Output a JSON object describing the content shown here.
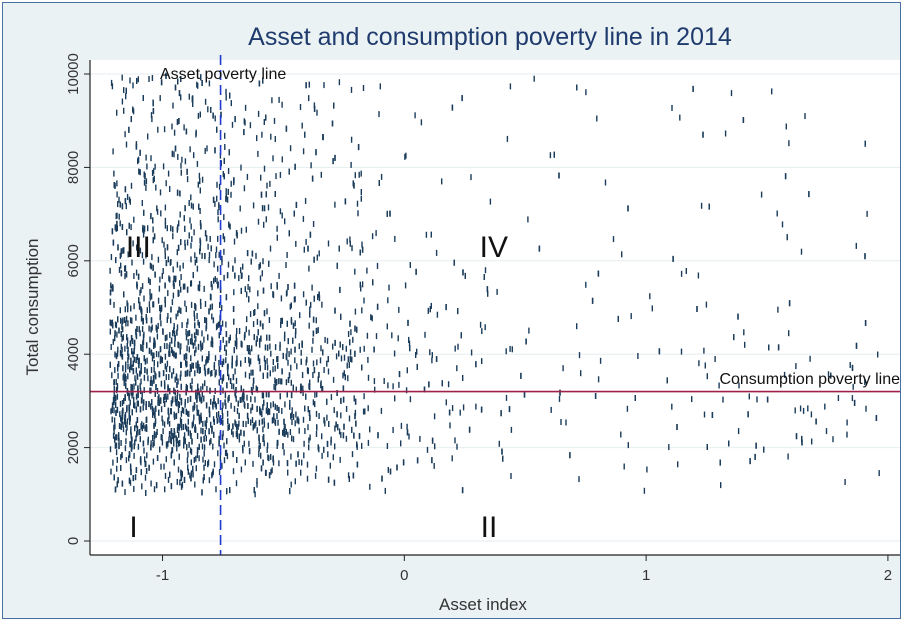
{
  "chart_data": {
    "type": "scatter",
    "title": "Asset and consumption poverty line in 2014",
    "xlabel": "Asset index",
    "ylabel": "Total consumption",
    "xlim": [
      -1.3,
      2.05
    ],
    "ylim": [
      -300,
      10300
    ],
    "x_ticks": [
      -1,
      0,
      1,
      2
    ],
    "x_tick_labels": [
      "-1",
      "0",
      "1",
      "2"
    ],
    "y_ticks": [
      0,
      2000,
      4000,
      6000,
      8000,
      10000
    ],
    "y_tick_labels": [
      "0",
      "2000",
      "4000",
      "6000",
      "8000",
      "10000"
    ],
    "grid": "horizontal",
    "asset_poverty_line": {
      "x": -0.76,
      "label": "Asset poverty line",
      "color": "#1f3bd0"
    },
    "consumption_poverty_line": {
      "y": 3200,
      "label": "Consumption poverty line",
      "color": "#a0204a"
    },
    "regions": [
      {
        "label": "I",
        "x": -1.12,
        "y": 300
      },
      {
        "label": "II",
        "x": 0.35,
        "y": 300
      },
      {
        "label": "III",
        "x": -1.1,
        "y": 6300
      },
      {
        "label": "IV",
        "x": 0.37,
        "y": 6300
      }
    ],
    "marker_color": "#1a3c5a",
    "point_count": 3000,
    "seed": 2014
  }
}
